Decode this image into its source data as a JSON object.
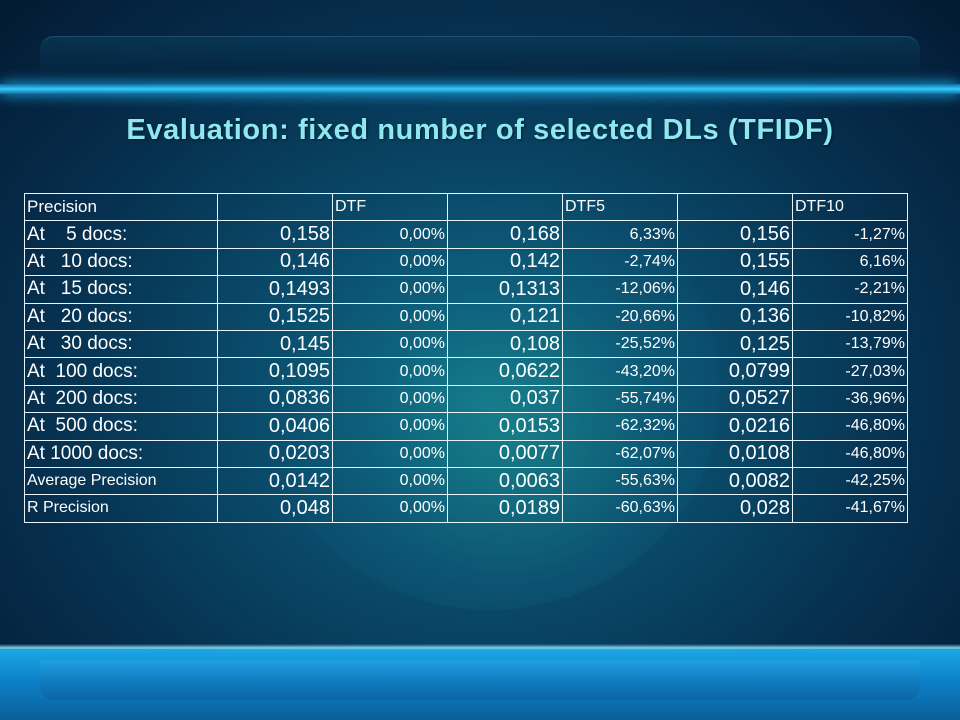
{
  "slide": {
    "title": "Evaluation: fixed number of selected DLs (TFIDF)"
  },
  "table": {
    "header": {
      "precision": "Precision",
      "col_b": "",
      "dtf": "DTF",
      "col_d": "",
      "dtf5": "DTF5",
      "col_f": "",
      "dtf10": "DTF10"
    },
    "rows": [
      {
        "label": "At    5 docs:",
        "v0": "0,158",
        "p0": "0,00%",
        "v5": "0,168",
        "p5": "6,33%",
        "v10": "0,156",
        "p10": "-1,27%"
      },
      {
        "label": "At   10 docs:",
        "v0": "0,146",
        "p0": "0,00%",
        "v5": "0,142",
        "p5": "-2,74%",
        "v10": "0,155",
        "p10": "6,16%"
      },
      {
        "label": "At   15 docs:",
        "v0": "0,1493",
        "p0": "0,00%",
        "v5": "0,1313",
        "p5": "-12,06%",
        "v10": "0,146",
        "p10": "-2,21%"
      },
      {
        "label": "At   20 docs:",
        "v0": "0,1525",
        "p0": "0,00%",
        "v5": "0,121",
        "p5": "-20,66%",
        "v10": "0,136",
        "p10": "-10,82%"
      },
      {
        "label": "At   30 docs:",
        "v0": "0,145",
        "p0": "0,00%",
        "v5": "0,108",
        "p5": "-25,52%",
        "v10": "0,125",
        "p10": "-13,79%"
      },
      {
        "label": "At  100 docs:",
        "v0": "0,1095",
        "p0": "0,00%",
        "v5": "0,0622",
        "p5": "-43,20%",
        "v10": "0,0799",
        "p10": "-27,03%"
      },
      {
        "label": "At  200 docs:",
        "v0": "0,0836",
        "p0": "0,00%",
        "v5": "0,037",
        "p5": "-55,74%",
        "v10": "0,0527",
        "p10": "-36,96%"
      },
      {
        "label": "At  500 docs:",
        "v0": "0,0406",
        "p0": "0,00%",
        "v5": "0,0153",
        "p5": "-62,32%",
        "v10": "0,0216",
        "p10": "-46,80%"
      },
      {
        "label": "At 1000 docs:",
        "v0": "0,0203",
        "p0": "0,00%",
        "v5": "0,0077",
        "p5": "-62,07%",
        "v10": "0,0108",
        "p10": "-46,80%"
      },
      {
        "label": "Average Precision",
        "v0": "0,0142",
        "p0": "0,00%",
        "v5": "0,0063",
        "p5": "-55,63%",
        "v10": "0,0082",
        "p10": "-42,25%"
      },
      {
        "label": "R Precision",
        "v0": "0,048",
        "p0": "0,00%",
        "v5": "0,0189",
        "p5": "-60,63%",
        "v10": "0,028",
        "p10": "-41,67%"
      }
    ]
  }
}
